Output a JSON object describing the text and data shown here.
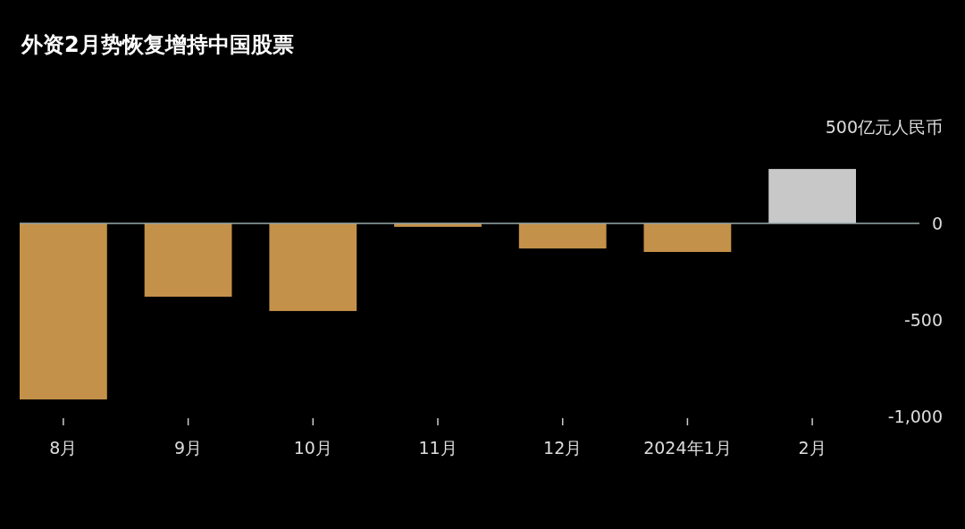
{
  "chart_data": {
    "type": "bar",
    "title": "外资2月势恢复增持中国股票",
    "categories": [
      "8月",
      "9月",
      "10月",
      "11月",
      "12月",
      "2024年1月",
      "2月"
    ],
    "values": [
      -912,
      -380,
      -454,
      -18,
      -130,
      -148,
      282
    ],
    "colors": [
      "#c4914a",
      "#c4914a",
      "#c4914a",
      "#c4914a",
      "#c4914a",
      "#c4914a",
      "#c8c8c8"
    ],
    "ylim": [
      -1000,
      500
    ],
    "yticks": [
      {
        "value": 500,
        "label": "500亿元人民币"
      },
      0,
      -500,
      {
        "value": -1000,
        "label": "-1,000"
      }
    ],
    "ref_lines": [
      {
        "axis": "y",
        "value": 0,
        "color": "#99aaaa"
      }
    ]
  }
}
